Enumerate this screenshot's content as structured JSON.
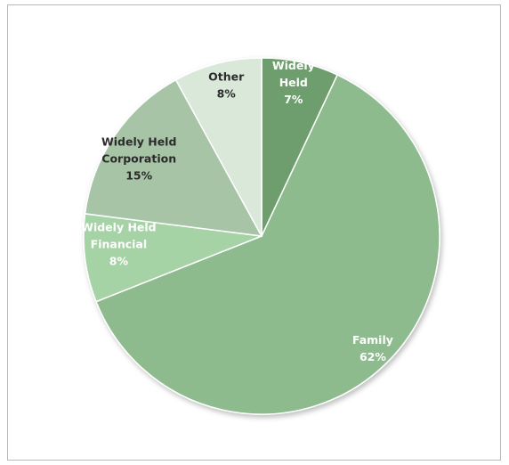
{
  "chart_data": {
    "type": "pie",
    "title": "",
    "slices": [
      {
        "name": "Widely Held",
        "label_lines": [
          "Widely",
          "Held"
        ],
        "value": 7,
        "value_label": "7%",
        "color": "#6e9e6e",
        "label_color": "#ffffff"
      },
      {
        "name": "Family",
        "label_lines": [
          "Family"
        ],
        "value": 62,
        "value_label": "62%",
        "color": "#8dbb8d",
        "label_color": "#ffffff"
      },
      {
        "name": "Widely Held Financial",
        "label_lines": [
          "Widely Held",
          "Financial"
        ],
        "value": 8,
        "value_label": "8%",
        "color": "#a6d3a6",
        "label_color": "#ffffff"
      },
      {
        "name": "Widely Held Corporation",
        "label_lines": [
          "Widely Held",
          "Corporation"
        ],
        "value": 15,
        "value_label": "15%",
        "color": "#a7c4a7",
        "label_color": "#2b2b2b"
      },
      {
        "name": "Other",
        "label_lines": [
          "Other"
        ],
        "value": 8,
        "value_label": "8%",
        "color": "#d9e8d9",
        "label_color": "#2b2b2b"
      }
    ],
    "legend": "none",
    "data_labels": "inside"
  }
}
